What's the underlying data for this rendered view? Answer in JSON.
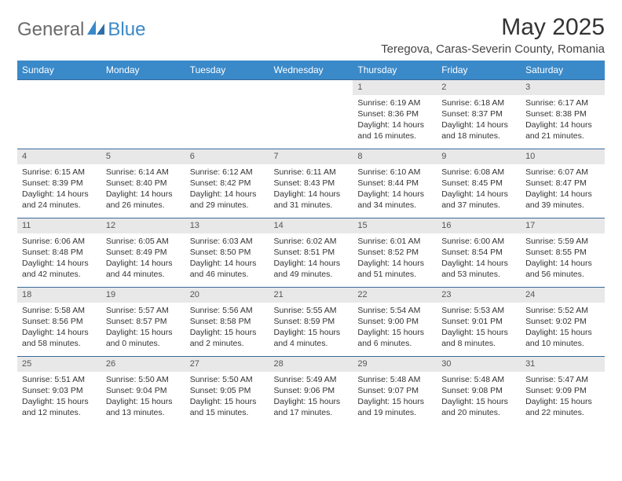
{
  "logo": {
    "text_gray": "General",
    "text_blue": "Blue"
  },
  "title": "May 2025",
  "location": "Teregova, Caras-Severin County, Romania",
  "day_headers": [
    "Sunday",
    "Monday",
    "Tuesday",
    "Wednesday",
    "Thursday",
    "Friday",
    "Saturday"
  ],
  "colors": {
    "header_bg": "#3a89c9",
    "header_text": "#ffffff",
    "row_border": "#3a6a99",
    "daynum_bg": "#e8e8e8",
    "logo_gray": "#6b6b6b",
    "logo_blue": "#3a89c9",
    "body_text": "#333333"
  },
  "weeks": [
    [
      null,
      null,
      null,
      null,
      {
        "n": "1",
        "sr": "6:19 AM",
        "ss": "8:36 PM",
        "dl": "14 hours and 16 minutes."
      },
      {
        "n": "2",
        "sr": "6:18 AM",
        "ss": "8:37 PM",
        "dl": "14 hours and 18 minutes."
      },
      {
        "n": "3",
        "sr": "6:17 AM",
        "ss": "8:38 PM",
        "dl": "14 hours and 21 minutes."
      }
    ],
    [
      {
        "n": "4",
        "sr": "6:15 AM",
        "ss": "8:39 PM",
        "dl": "14 hours and 24 minutes."
      },
      {
        "n": "5",
        "sr": "6:14 AM",
        "ss": "8:40 PM",
        "dl": "14 hours and 26 minutes."
      },
      {
        "n": "6",
        "sr": "6:12 AM",
        "ss": "8:42 PM",
        "dl": "14 hours and 29 minutes."
      },
      {
        "n": "7",
        "sr": "6:11 AM",
        "ss": "8:43 PM",
        "dl": "14 hours and 31 minutes."
      },
      {
        "n": "8",
        "sr": "6:10 AM",
        "ss": "8:44 PM",
        "dl": "14 hours and 34 minutes."
      },
      {
        "n": "9",
        "sr": "6:08 AM",
        "ss": "8:45 PM",
        "dl": "14 hours and 37 minutes."
      },
      {
        "n": "10",
        "sr": "6:07 AM",
        "ss": "8:47 PM",
        "dl": "14 hours and 39 minutes."
      }
    ],
    [
      {
        "n": "11",
        "sr": "6:06 AM",
        "ss": "8:48 PM",
        "dl": "14 hours and 42 minutes."
      },
      {
        "n": "12",
        "sr": "6:05 AM",
        "ss": "8:49 PM",
        "dl": "14 hours and 44 minutes."
      },
      {
        "n": "13",
        "sr": "6:03 AM",
        "ss": "8:50 PM",
        "dl": "14 hours and 46 minutes."
      },
      {
        "n": "14",
        "sr": "6:02 AM",
        "ss": "8:51 PM",
        "dl": "14 hours and 49 minutes."
      },
      {
        "n": "15",
        "sr": "6:01 AM",
        "ss": "8:52 PM",
        "dl": "14 hours and 51 minutes."
      },
      {
        "n": "16",
        "sr": "6:00 AM",
        "ss": "8:54 PM",
        "dl": "14 hours and 53 minutes."
      },
      {
        "n": "17",
        "sr": "5:59 AM",
        "ss": "8:55 PM",
        "dl": "14 hours and 56 minutes."
      }
    ],
    [
      {
        "n": "18",
        "sr": "5:58 AM",
        "ss": "8:56 PM",
        "dl": "14 hours and 58 minutes."
      },
      {
        "n": "19",
        "sr": "5:57 AM",
        "ss": "8:57 PM",
        "dl": "15 hours and 0 minutes."
      },
      {
        "n": "20",
        "sr": "5:56 AM",
        "ss": "8:58 PM",
        "dl": "15 hours and 2 minutes."
      },
      {
        "n": "21",
        "sr": "5:55 AM",
        "ss": "8:59 PM",
        "dl": "15 hours and 4 minutes."
      },
      {
        "n": "22",
        "sr": "5:54 AM",
        "ss": "9:00 PM",
        "dl": "15 hours and 6 minutes."
      },
      {
        "n": "23",
        "sr": "5:53 AM",
        "ss": "9:01 PM",
        "dl": "15 hours and 8 minutes."
      },
      {
        "n": "24",
        "sr": "5:52 AM",
        "ss": "9:02 PM",
        "dl": "15 hours and 10 minutes."
      }
    ],
    [
      {
        "n": "25",
        "sr": "5:51 AM",
        "ss": "9:03 PM",
        "dl": "15 hours and 12 minutes."
      },
      {
        "n": "26",
        "sr": "5:50 AM",
        "ss": "9:04 PM",
        "dl": "15 hours and 13 minutes."
      },
      {
        "n": "27",
        "sr": "5:50 AM",
        "ss": "9:05 PM",
        "dl": "15 hours and 15 minutes."
      },
      {
        "n": "28",
        "sr": "5:49 AM",
        "ss": "9:06 PM",
        "dl": "15 hours and 17 minutes."
      },
      {
        "n": "29",
        "sr": "5:48 AM",
        "ss": "9:07 PM",
        "dl": "15 hours and 19 minutes."
      },
      {
        "n": "30",
        "sr": "5:48 AM",
        "ss": "9:08 PM",
        "dl": "15 hours and 20 minutes."
      },
      {
        "n": "31",
        "sr": "5:47 AM",
        "ss": "9:09 PM",
        "dl": "15 hours and 22 minutes."
      }
    ]
  ],
  "labels": {
    "sunrise": "Sunrise: ",
    "sunset": "Sunset: ",
    "daylight": "Daylight: "
  }
}
